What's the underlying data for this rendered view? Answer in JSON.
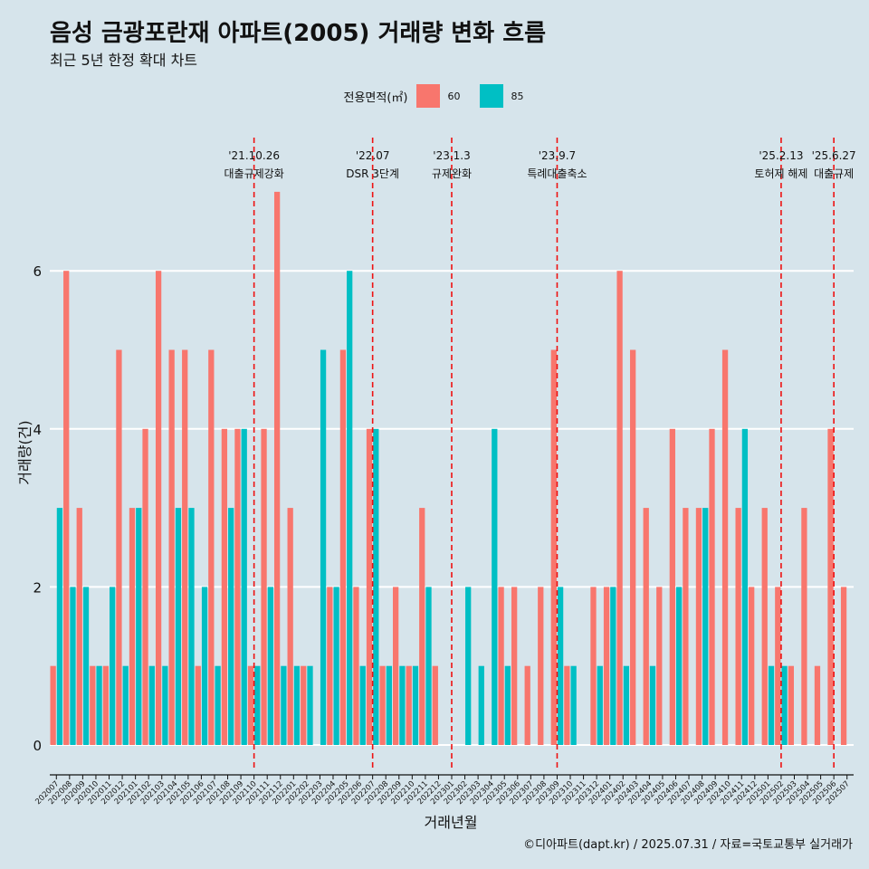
{
  "title": "음성 금광포란재 아파트(2005) 거래량 변화 흐름",
  "subtitle": "최근 5년 한정 확대 차트",
  "caption": "©디아파트(dapt.kr) / 2025.07.31 / 자료=국토교통부 실거래가",
  "legend": {
    "title": "전용면적(㎡)",
    "items": [
      {
        "label": "60",
        "color": "#f8766d"
      },
      {
        "label": "85",
        "color": "#00bfc4"
      }
    ]
  },
  "chart_data": {
    "type": "bar",
    "title": "음성 금광포란재 아파트(2005) 거래량 변화 흐름",
    "xlabel": "거래년월",
    "ylabel": "거래량(건)",
    "ylim": [
      -0.3,
      8.0
    ],
    "yticks": [
      0,
      2,
      4,
      6
    ],
    "categories": [
      "202007",
      "202008",
      "202009",
      "202010",
      "202011",
      "202012",
      "202101",
      "202102",
      "202103",
      "202104",
      "202105",
      "202106",
      "202107",
      "202108",
      "202109",
      "202110",
      "202111",
      "202112",
      "202201",
      "202202",
      "202203",
      "202204",
      "202205",
      "202206",
      "202207",
      "202208",
      "202209",
      "202210",
      "202211",
      "202212",
      "202301",
      "202302",
      "202303",
      "202304",
      "202305",
      "202306",
      "202307",
      "202308",
      "202309",
      "202310",
      "202311",
      "202312",
      "202401",
      "202402",
      "202403",
      "202404",
      "202405",
      "202406",
      "202407",
      "202408",
      "202409",
      "202410",
      "202411",
      "202412",
      "202501",
      "202502",
      "202503",
      "202504",
      "202505",
      "202506",
      "202507"
    ],
    "series": [
      {
        "name": "60",
        "color": "#f8766d",
        "values": [
          1,
          6,
          3,
          1,
          1,
          5,
          3,
          4,
          6,
          5,
          5,
          1,
          5,
          4,
          4,
          1,
          4,
          7,
          3,
          1,
          0,
          2,
          5,
          2,
          4,
          1,
          2,
          1,
          3,
          1,
          0,
          0,
          0,
          0,
          2,
          2,
          1,
          2,
          5,
          1,
          0,
          2,
          2,
          6,
          5,
          3,
          2,
          4,
          3,
          3,
          4,
          5,
          3,
          2,
          3,
          2,
          1,
          3,
          1,
          4,
          2
        ]
      },
      {
        "name": "85",
        "color": "#00bfc4",
        "values": [
          3,
          2,
          2,
          1,
          2,
          1,
          3,
          1,
          1,
          3,
          3,
          2,
          1,
          3,
          4,
          1,
          2,
          1,
          1,
          1,
          5,
          2,
          6,
          1,
          4,
          1,
          1,
          1,
          2,
          0,
          0,
          2,
          1,
          4,
          1,
          0,
          0,
          0,
          2,
          1,
          0,
          1,
          2,
          1,
          0,
          1,
          0,
          2,
          0,
          3,
          0,
          0,
          4,
          0,
          1,
          1,
          0,
          0,
          0,
          0,
          0
        ]
      }
    ],
    "annotations": [
      {
        "category": "202110",
        "date": "'21.10.26",
        "label": "대출규제강화"
      },
      {
        "category": "202207",
        "date": "'22.07",
        "label": "DSR 3단계"
      },
      {
        "category": "202301",
        "date": "'23.1.3",
        "label": "규제완화"
      },
      {
        "category": "202309",
        "date": "'23.9.7",
        "label": "특례대출축소"
      },
      {
        "category": "202502",
        "date": "'25.2.13",
        "label": "토허제 해제"
      },
      {
        "category": "202506",
        "date": "'25.6.27",
        "label": "대출규제"
      }
    ]
  }
}
